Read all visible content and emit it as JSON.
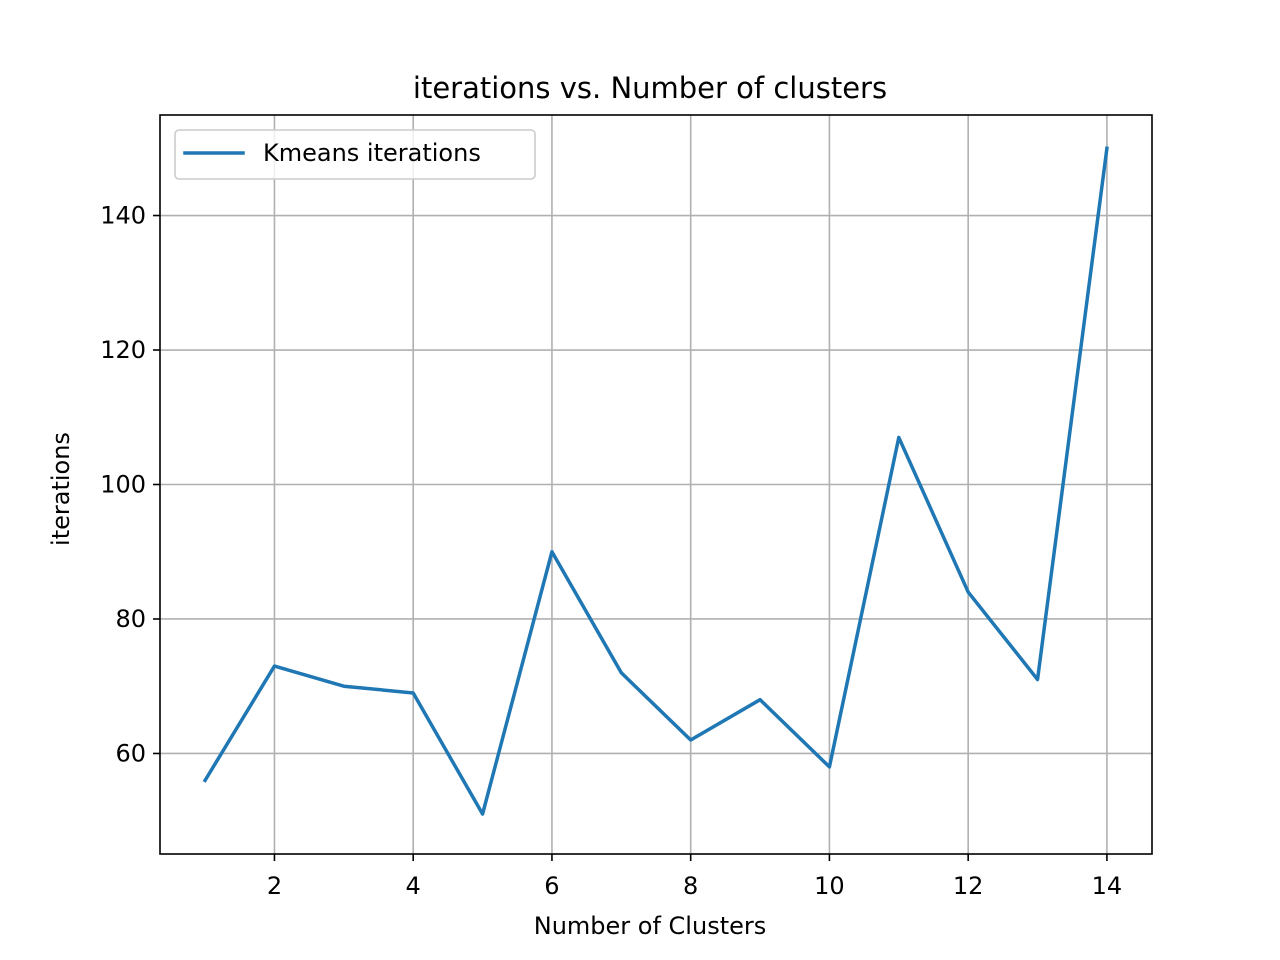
{
  "chart_data": {
    "type": "line",
    "title": "iterations  vs. Number of clusters",
    "xlabel": "Number of Clusters",
    "ylabel": "iterations",
    "xlim": [
      0.35,
      14.65
    ],
    "ylim": [
      45.05,
      154.95
    ],
    "xticks": [
      2,
      4,
      6,
      8,
      10,
      12,
      14
    ],
    "yticks": [
      60,
      80,
      100,
      120,
      140
    ],
    "grid": true,
    "legend_position": "top-left",
    "x": [
      1,
      2,
      3,
      4,
      5,
      6,
      7,
      8,
      9,
      10,
      11,
      12,
      13,
      14
    ],
    "series": [
      {
        "name": "Kmeans iterations",
        "color": "#1f77b4",
        "values": [
          56,
          73,
          70,
          69,
          51,
          90,
          72,
          62,
          68,
          58,
          107,
          84,
          71,
          150
        ]
      }
    ]
  }
}
